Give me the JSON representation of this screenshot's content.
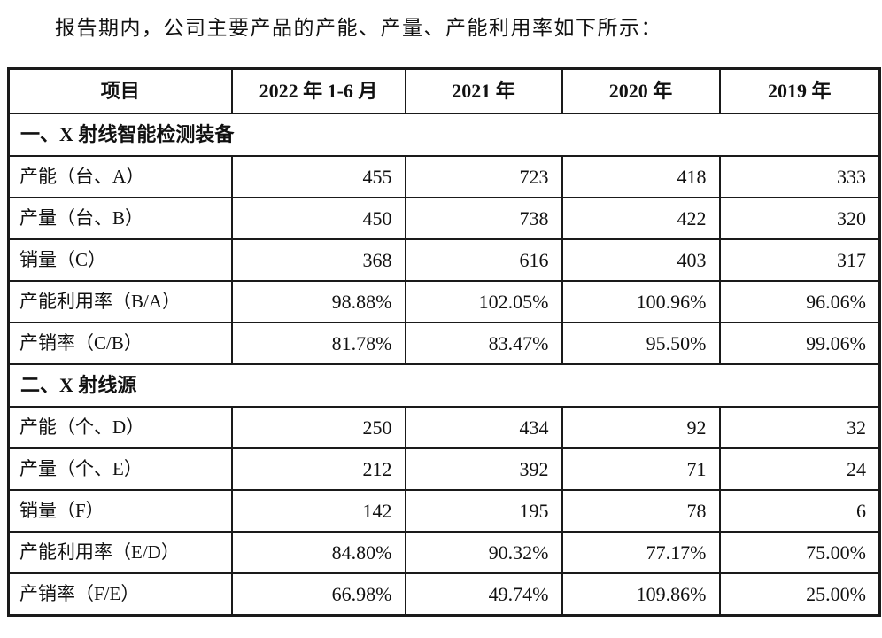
{
  "page": {
    "intro": "报告期内，公司主要产品的产能、产量、产能利用率如下所示："
  },
  "table": {
    "columns": [
      "项目",
      "2022 年 1-6 月",
      "2021 年",
      "2020 年",
      "2019 年"
    ],
    "sections": [
      {
        "title": "一、X 射线智能检测装备",
        "rows": [
          {
            "label": "产能（台、A）",
            "values": [
              "455",
              "723",
              "418",
              "333"
            ]
          },
          {
            "label": "产量（台、B）",
            "values": [
              "450",
              "738",
              "422",
              "320"
            ]
          },
          {
            "label": "销量（C）",
            "values": [
              "368",
              "616",
              "403",
              "317"
            ]
          },
          {
            "label": "产能利用率（B/A）",
            "values": [
              "98.88%",
              "102.05%",
              "100.96%",
              "96.06%"
            ]
          },
          {
            "label": "产销率（C/B）",
            "values": [
              "81.78%",
              "83.47%",
              "95.50%",
              "99.06%"
            ]
          }
        ]
      },
      {
        "title": "二、X 射线源",
        "rows": [
          {
            "label": "产能（个、D）",
            "values": [
              "250",
              "434",
              "92",
              "32"
            ]
          },
          {
            "label": "产量（个、E）",
            "values": [
              "212",
              "392",
              "71",
              "24"
            ]
          },
          {
            "label": "销量（F）",
            "values": [
              "142",
              "195",
              "78",
              "6"
            ]
          },
          {
            "label": "产能利用率（E/D）",
            "values": [
              "84.80%",
              "90.32%",
              "77.17%",
              "75.00%"
            ]
          },
          {
            "label": "产销率（F/E）",
            "values": [
              "66.98%",
              "49.74%",
              "109.86%",
              "25.00%"
            ]
          }
        ]
      }
    ]
  }
}
